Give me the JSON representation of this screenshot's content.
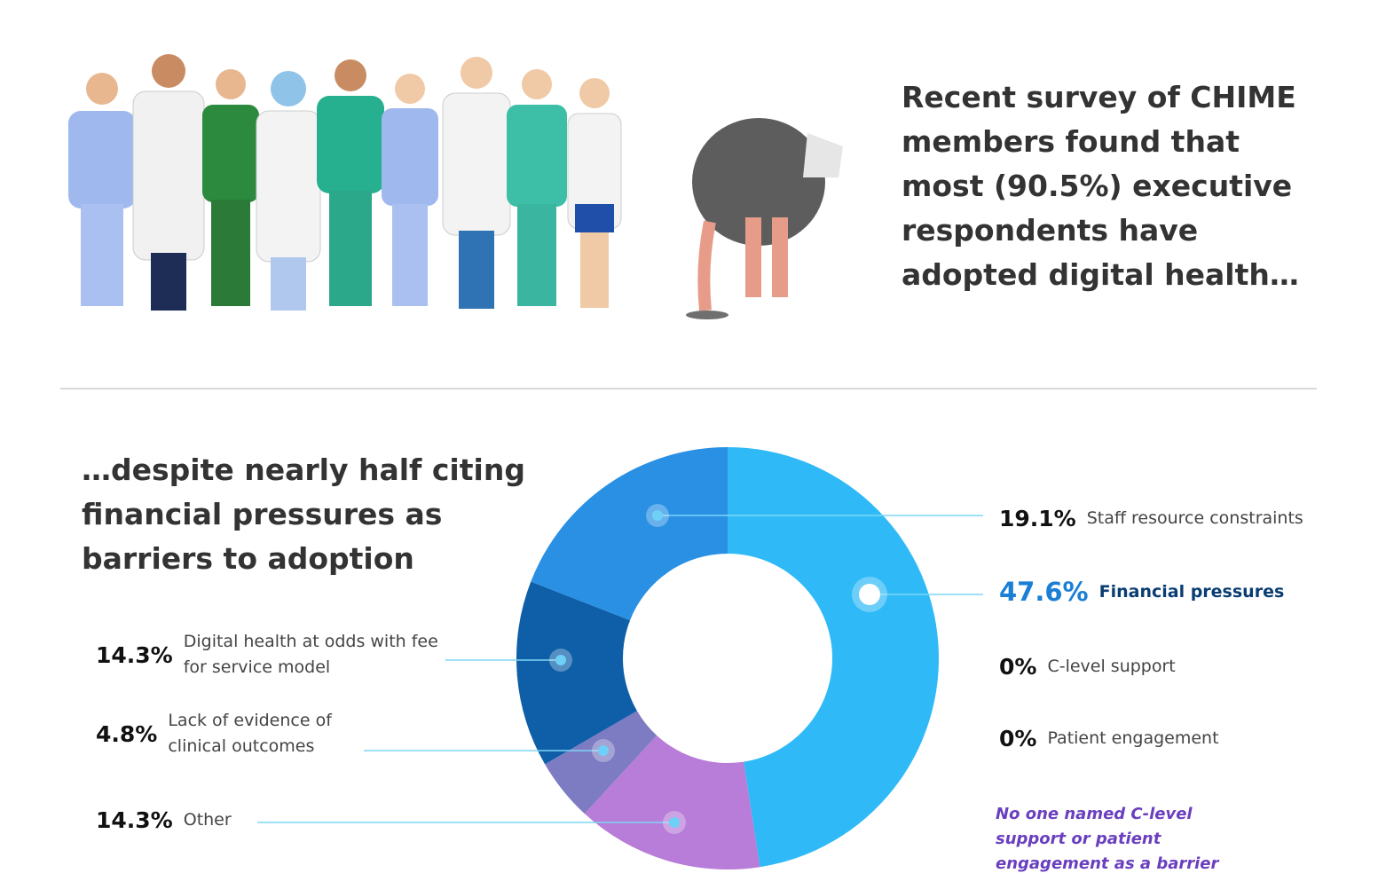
{
  "header": {
    "text": "Recent survey of CHIME members found that most (90.5%) executive respondents have adopted digital health…"
  },
  "chart_data": {
    "type": "donut",
    "title": "…despite nearly half citing financial pressures as barriers to adoption",
    "categories": [
      "Financial pressures",
      "Other",
      "Lack of evidence of clinical outcomes",
      "Digital health at odds with fee for service model",
      "Staff resource constraints",
      "C-level support",
      "Patient engagement"
    ],
    "values": [
      47.6,
      14.3,
      4.8,
      14.3,
      19.1,
      0,
      0
    ],
    "value_labels": [
      "47.6%",
      "14.3%",
      "4.8%",
      "14.3%",
      "19.1%",
      "0%",
      "0%"
    ],
    "colors": [
      "#2fbaf7",
      "#b77dd8",
      "#7d7bc2",
      "#0e5fa8",
      "#2990e4",
      "#cccccc",
      "#cccccc"
    ],
    "annotation": "No one named C-level support or patient engagement as a barrier"
  }
}
